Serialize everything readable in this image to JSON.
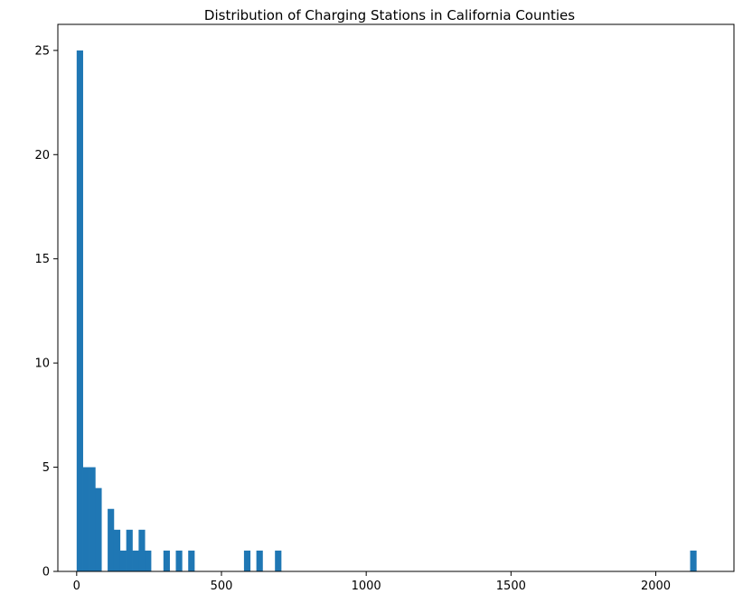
{
  "chart_data": {
    "type": "bar",
    "title": "Distribution of Charging Stations in California Counties",
    "xlabel": "",
    "ylabel": "",
    "xlim": [
      -65,
      2270
    ],
    "ylim": [
      0,
      26.25
    ],
    "x_ticks": [
      0,
      500,
      1000,
      1500,
      2000
    ],
    "y_ticks": [
      0,
      5,
      10,
      15,
      20,
      25
    ],
    "x_tick_labels": [
      "0",
      "500",
      "1000",
      "1500",
      "2000"
    ],
    "y_tick_labels": [
      "0",
      "5",
      "10",
      "15",
      "20",
      "25"
    ],
    "bin_start": 0,
    "bin_width": 21.4,
    "counts": [
      25,
      5,
      5,
      4,
      0,
      3,
      2,
      1,
      2,
      1,
      2,
      1,
      0,
      0,
      1,
      0,
      1,
      0,
      1,
      0,
      0,
      0,
      0,
      0,
      0,
      0,
      0,
      1,
      0,
      1,
      0,
      0,
      1,
      0,
      0,
      0,
      0,
      0,
      0,
      0,
      0,
      0,
      0,
      0,
      0,
      0,
      0,
      0,
      0,
      0,
      0,
      0,
      0,
      0,
      0,
      0,
      0,
      0,
      0,
      0,
      0,
      0,
      0,
      0,
      0,
      0,
      0,
      0,
      0,
      0,
      0,
      0,
      0,
      0,
      0,
      0,
      0,
      0,
      0,
      0,
      0,
      0,
      0,
      0,
      0,
      0,
      0,
      0,
      0,
      0,
      0,
      0,
      0,
      0,
      0,
      0,
      0,
      0,
      0,
      1
    ],
    "color": "#1f77b4",
    "grid": false,
    "legend": "none"
  }
}
